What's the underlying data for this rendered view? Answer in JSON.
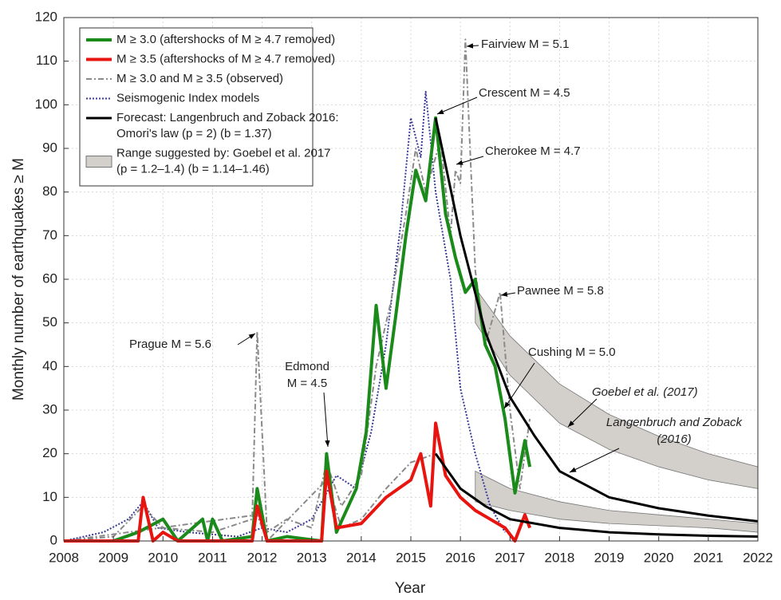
{
  "chart_data": {
    "type": "line",
    "xlabel": "Year",
    "ylabel": "Monthly number of earthquakes ≥ M",
    "xlim": [
      2008,
      2022
    ],
    "ylim": [
      0,
      120
    ],
    "xticks": [
      2008,
      2009,
      2010,
      2011,
      2012,
      2013,
      2014,
      2015,
      2016,
      2017,
      2018,
      2019,
      2020,
      2021,
      2022
    ],
    "yticks": [
      0,
      10,
      20,
      30,
      40,
      50,
      60,
      70,
      80,
      90,
      100,
      110,
      120
    ],
    "grid": true,
    "legend": "upper left",
    "bands": [
      {
        "name": [
          "Range suggested by: Goebel et al. 2017",
          "(p = 1.2–1.4) (b = 1.14–1.46)"
        ],
        "color": "#d3d0cc",
        "x": [
          2016.3,
          2017,
          2018,
          2019,
          2020,
          2021,
          2022
        ],
        "lower": [
          50,
          38,
          27,
          21,
          17,
          14,
          12
        ],
        "upper": [
          58,
          47,
          36,
          29,
          24,
          20,
          17
        ]
      },
      {
        "color": "#d3d0cc",
        "x": [
          2016.3,
          2017,
          2018,
          2019,
          2020,
          2021,
          2022
        ],
        "lower": [
          9,
          7,
          5,
          4,
          3.5,
          3,
          2
        ],
        "upper": [
          16,
          12,
          9,
          7,
          6,
          5,
          4
        ]
      }
    ],
    "series": [
      {
        "name": "Seismogenic Index models",
        "color": "#3a3a9a",
        "style": "dotted",
        "width": 2,
        "x": [
          2008,
          2008.8,
          2009.3,
          2009.6,
          2009.9,
          2010.5,
          2011.5,
          2012,
          2012.5,
          2013,
          2013.5,
          2013.9,
          2014.2,
          2014.5,
          2014.8,
          2015,
          2015.2,
          2015.3,
          2015.5,
          2015.8,
          2016,
          2016.3,
          2016.6,
          2016.9
        ],
        "values": [
          0,
          2,
          5,
          9,
          3,
          2,
          1,
          3,
          2,
          5,
          15,
          12,
          25,
          45,
          73,
          97,
          88,
          103,
          80,
          60,
          35,
          20,
          8,
          2
        ]
      },
      {
        "name": "M ≥ 3.0 and M ≥ 3.5 (observed)",
        "color": "#8a8a8a",
        "style": "dashdot",
        "width": 2,
        "x": [
          2008,
          2009,
          2009.6,
          2010,
          2011,
          2011.8,
          2011.9,
          2012.1,
          2012.5,
          2013,
          2013.3,
          2013.6,
          2014,
          2014.3,
          2014.6,
          2014.9,
          2015.1,
          2015.3,
          2015.6,
          2015.8,
          2015.9,
          2016,
          2016.1,
          2016.3,
          2016.5,
          2016.8,
          2017,
          2017.2,
          2017.4
        ],
        "values": [
          0,
          1,
          8,
          3,
          2,
          5,
          48,
          2,
          5,
          3,
          18,
          8,
          15,
          40,
          55,
          75,
          90,
          80,
          92,
          70,
          85,
          82,
          115,
          62,
          45,
          57,
          30,
          12,
          28
        ]
      },
      {
        "color": "#8a8a8a",
        "style": "dashdot",
        "width": 2,
        "x": [
          2008,
          2011.9,
          2012.1,
          2013.3,
          2013.6,
          2014,
          2014.5,
          2015,
          2015.5,
          2016,
          2016.5,
          2017,
          2017.4
        ],
        "values": [
          0,
          6,
          0,
          14,
          3,
          5,
          12,
          18,
          20,
          12,
          8,
          5,
          4
        ]
      },
      {
        "name": "M ≥ 3.0 (aftershocks of M ≥ 4.7 removed)",
        "color": "#1a8a1a",
        "style": "solid",
        "width": 4,
        "x": [
          2008,
          2009,
          2009.5,
          2010,
          2010.3,
          2010.8,
          2010.9,
          2011,
          2011.2,
          2011.8,
          2011.9,
          2012.1,
          2012.5,
          2013.2,
          2013.3,
          2013.5,
          2013.9,
          2014.1,
          2014.3,
          2014.5,
          2014.7,
          2014.9,
          2015.1,
          2015.3,
          2015.5,
          2015.7,
          2015.9,
          2016.1,
          2016.3,
          2016.5,
          2016.7,
          2016.9,
          2017.1,
          2017.3,
          2017.4
        ],
        "values": [
          0,
          0,
          2,
          5,
          0,
          5,
          0,
          5,
          0,
          1,
          12,
          0,
          1,
          0,
          20,
          2,
          12,
          25,
          54,
          35,
          52,
          70,
          85,
          78,
          97,
          75,
          65,
          57,
          60,
          45,
          40,
          28,
          11,
          23,
          17
        ]
      },
      {
        "name": "M ≥ 3.5 (aftershocks of M ≥ 4.7 removed)",
        "color": "#e8140f",
        "style": "solid",
        "width": 4,
        "x": [
          2008,
          2009.5,
          2009.6,
          2009.8,
          2010,
          2010.3,
          2011.8,
          2011.9,
          2012.1,
          2013.2,
          2013.3,
          2013.5,
          2014,
          2014.5,
          2015,
          2015.2,
          2015.4,
          2015.5,
          2015.7,
          2016,
          2016.3,
          2016.6,
          2016.9,
          2017.1,
          2017.3,
          2017.4
        ],
        "values": [
          0,
          0,
          10,
          0,
          2,
          0,
          0,
          8,
          0,
          0,
          16,
          3,
          4,
          10,
          14,
          20,
          8,
          27,
          15,
          10,
          7,
          5,
          3,
          0,
          6,
          3
        ]
      },
      {
        "name": [
          "Forecast: Langenbruch and Zoback 2016:",
          "Omori's law (p = 2) (b = 1.37)"
        ],
        "color": "#000000",
        "style": "solid",
        "width": 3,
        "x": [
          2015.5,
          2016,
          2016.5,
          2017,
          2017.5,
          2018,
          2019,
          2020,
          2021,
          2022
        ],
        "values": [
          97,
          70,
          48,
          33,
          24,
          16,
          10,
          7.5,
          5.8,
          4.5
        ]
      },
      {
        "color": "#000000",
        "style": "solid",
        "width": 3,
        "x": [
          2015.5,
          2016,
          2016.5,
          2017,
          2018,
          2019,
          2020,
          2021,
          2022
        ],
        "values": [
          20,
          12,
          8,
          5,
          3,
          2,
          1.5,
          1.2,
          1
        ]
      }
    ],
    "annotations": [
      {
        "text": [
          "Fairview M = 5.1"
        ]
      },
      {
        "text": [
          "Crescent M = 4.5"
        ]
      },
      {
        "text": [
          "Cherokee M = 4.7"
        ]
      },
      {
        "text": [
          "Pawnee M = 5.8"
        ]
      },
      {
        "text": [
          "Prague M = 5.6"
        ]
      },
      {
        "text": [
          "Edmond",
          "M = 4.5"
        ]
      },
      {
        "text": [
          "Cushing M = 5.0"
        ]
      },
      {
        "text": [
          "Goebel et al. (2017)"
        ]
      },
      {
        "text": [
          "Langenbruch and Zoback",
          "(2016)"
        ]
      }
    ]
  }
}
